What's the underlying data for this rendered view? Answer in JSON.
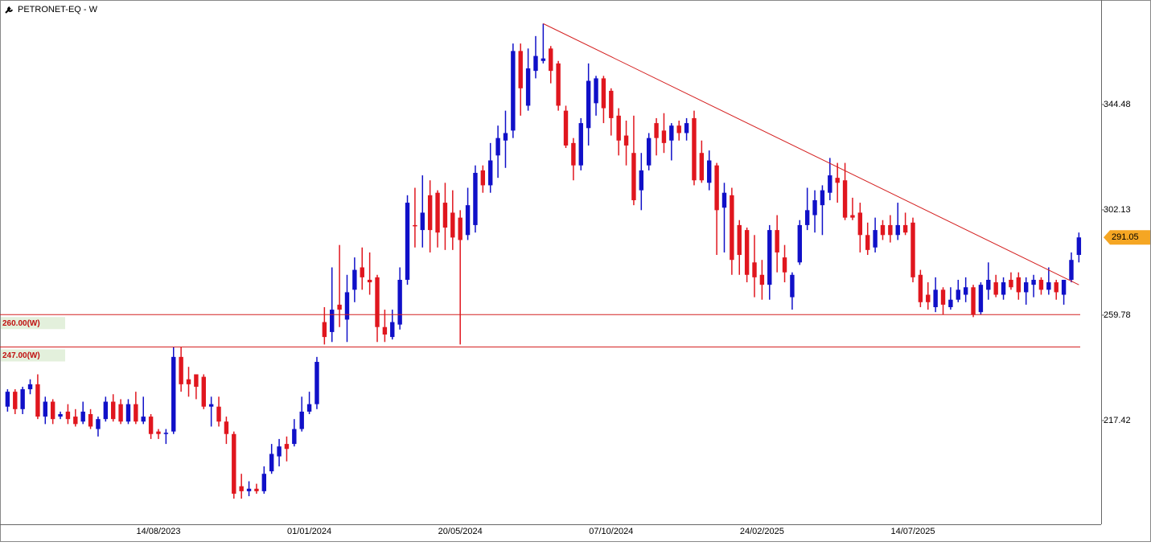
{
  "chart_data": {
    "type": "candlestick",
    "title": "PETRONET-EQ - W",
    "categories": [
      null,
      null,
      null,
      null,
      null,
      null,
      null,
      null,
      null,
      null,
      null,
      null,
      null,
      null,
      null,
      null,
      null,
      null,
      null,
      null,
      "14/08/2023",
      null,
      null,
      null,
      null,
      null,
      null,
      null,
      null,
      null,
      null,
      null,
      null,
      null,
      null,
      null,
      null,
      null,
      null,
      null,
      "01/01/2024",
      null,
      null,
      null,
      null,
      null,
      null,
      null,
      null,
      null,
      null,
      null,
      null,
      null,
      null,
      null,
      null,
      null,
      null,
      null,
      "20/05/2024",
      null,
      null,
      null,
      null,
      null,
      null,
      null,
      null,
      null,
      null,
      null,
      null,
      null,
      null,
      null,
      null,
      null,
      null,
      null,
      "07/10/2024",
      null,
      null,
      null,
      null,
      null,
      null,
      null,
      null,
      null,
      null,
      null,
      null,
      null,
      null,
      null,
      null,
      null,
      null,
      null,
      "24/02/2025",
      null,
      null,
      null,
      null,
      null,
      null,
      null,
      null,
      null,
      null,
      null,
      null,
      null,
      null,
      null,
      null,
      null,
      null,
      null,
      "14/07/2025",
      null,
      null,
      null,
      null,
      null,
      null,
      null,
      null,
      null,
      null,
      null,
      null,
      null,
      null,
      null,
      null,
      null,
      null,
      null,
      null,
      null,
      null
    ],
    "open": [
      223,
      229,
      222,
      230,
      232,
      219,
      225,
      219,
      221,
      219,
      217,
      220,
      214,
      218,
      225,
      224,
      217,
      224,
      217,
      219,
      213,
      212,
      213,
      243,
      234,
      236,
      235,
      223,
      223,
      217,
      212,
      191,
      189,
      190,
      189,
      197,
      203,
      208,
      208,
      214,
      221,
      224,
      257,
      253,
      264,
      258,
      270,
      279,
      274,
      275,
      255,
      251,
      256,
      274,
      296,
      294,
      308,
      309,
      305,
      301,
      299,
      292,
      296,
      318,
      312,
      324,
      330,
      334,
      366,
      344,
      358,
      362,
      367,
      361,
      342,
      329,
      320,
      335,
      345,
      355,
      350,
      340,
      332,
      325,
      310,
      320,
      337,
      334,
      330,
      336,
      333,
      339,
      325,
      313,
      320,
      303,
      308,
      296,
      294,
      281,
      276,
      272,
      294,
      283,
      267,
      281,
      296,
      300,
      304,
      309,
      315,
      314,
      300,
      301,
      292,
      287,
      296,
      296,
      292,
      296,
      297,
      276,
      268,
      263,
      270,
      263,
      266,
      268,
      271,
      261,
      270,
      273,
      268,
      274,
      275,
      269,
      272,
      274,
      270,
      273,
      268,
      274,
      284
    ],
    "high": [
      230,
      230,
      231,
      234,
      236,
      227,
      226,
      221,
      224,
      222,
      225,
      222,
      219,
      227,
      228,
      226,
      226,
      229,
      227,
      220,
      214,
      214,
      247,
      247,
      239,
      236,
      236,
      227,
      227,
      219,
      213,
      196,
      193,
      192,
      199,
      208,
      210,
      211,
      218,
      227,
      229,
      243,
      263,
      279,
      288,
      276,
      283,
      287,
      285,
      276,
      262,
      262,
      279,
      308,
      311,
      316,
      314,
      310,
      313,
      310,
      302,
      311,
      320,
      320,
      329,
      336,
      342,
      369,
      369,
      367,
      372,
      377,
      368,
      362,
      344,
      331,
      339,
      361,
      356,
      356,
      351,
      343,
      338,
      340,
      325,
      333,
      339,
      341,
      337,
      338,
      339,
      342,
      330,
      326,
      321,
      313,
      311,
      298,
      295,
      292,
      282,
      296,
      300,
      288,
      277,
      298,
      311,
      310,
      312,
      323,
      321,
      321,
      307,
      305,
      297,
      299,
      298,
      300,
      305,
      301,
      299,
      278,
      273,
      275,
      271,
      271,
      274,
      275,
      272,
      273,
      281,
      276,
      275,
      277,
      277,
      275,
      276,
      275,
      279,
      274,
      274,
      285,
      293
    ],
    "low": [
      221,
      220,
      220,
      228,
      218,
      216,
      216,
      218,
      216,
      215,
      216,
      214,
      211,
      217,
      217,
      216,
      216,
      216,
      216,
      210,
      210,
      208,
      212,
      229,
      227,
      226,
      222,
      215,
      215,
      208,
      186,
      186,
      187,
      188,
      188,
      196,
      199,
      201,
      207,
      213,
      220,
      222,
      248,
      249,
      255,
      249,
      265,
      270,
      268,
      249,
      249,
      250,
      254,
      272,
      287,
      287,
      285,
      287,
      286,
      286,
      248,
      290,
      293,
      309,
      309,
      315,
      319,
      331,
      340,
      342,
      355,
      361,
      353,
      342,
      327,
      314,
      318,
      328,
      340,
      337,
      332,
      324,
      320,
      304,
      302,
      318,
      324,
      325,
      322,
      330,
      330,
      312,
      313,
      310,
      284,
      285,
      276,
      276,
      273,
      267,
      266,
      266,
      277,
      273,
      262,
      280,
      294,
      293,
      292,
      306,
      305,
      298,
      298,
      285,
      284,
      285,
      290,
      289,
      290,
      292,
      273,
      263,
      262,
      261,
      260,
      262,
      265,
      265,
      259,
      260,
      266,
      267,
      266,
      270,
      266,
      264,
      267,
      268,
      268,
      266,
      264,
      273,
      281
    ],
    "close": [
      229,
      222,
      230,
      232,
      219,
      225,
      218,
      220,
      218,
      216,
      221,
      215,
      218,
      225,
      218,
      217,
      224,
      217,
      219,
      212,
      212,
      212.5,
      243,
      232,
      232,
      231,
      223,
      224,
      217,
      212,
      188,
      189,
      190,
      189,
      196,
      204,
      207,
      206,
      214,
      221,
      224,
      241,
      251,
      262,
      262,
      269,
      278,
      275,
      273,
      255,
      252,
      257,
      274,
      305,
      295.5,
      301,
      294,
      293,
      295,
      291,
      290,
      304,
      317,
      312,
      322,
      331,
      333,
      366,
      351,
      359,
      364,
      363,
      358,
      344,
      328,
      320,
      337,
      354,
      355,
      343,
      339,
      330,
      328,
      306,
      318,
      331,
      331,
      329,
      336,
      333,
      337,
      314,
      314,
      322,
      302,
      309,
      282,
      284,
      276,
      275,
      272,
      294,
      285,
      277,
      276,
      296,
      302,
      306,
      310,
      316,
      313,
      299,
      299,
      292,
      286,
      294,
      292,
      292,
      296,
      293,
      275,
      265,
      265,
      270,
      264,
      266,
      270,
      271,
      260,
      272,
      274,
      268,
      273,
      271,
      269,
      273,
      274,
      270,
      273,
      269,
      274,
      282,
      291.05
    ],
    "up_color": "#1010c8",
    "down_color": "#e0161e",
    "ylim": [
      175.7,
      386.5
    ],
    "yticks": [
      217.42,
      259.78,
      302.13,
      344.48
    ],
    "hlines": [
      {
        "value": 260,
        "label": "260.00(W)"
      },
      {
        "value": 247,
        "label": "247.00(W)"
      }
    ],
    "hline_color": "#d42020",
    "trendline": {
      "x": [
        71,
        142
      ],
      "y": [
        377,
        272
      ]
    },
    "last_price": 291.05
  }
}
